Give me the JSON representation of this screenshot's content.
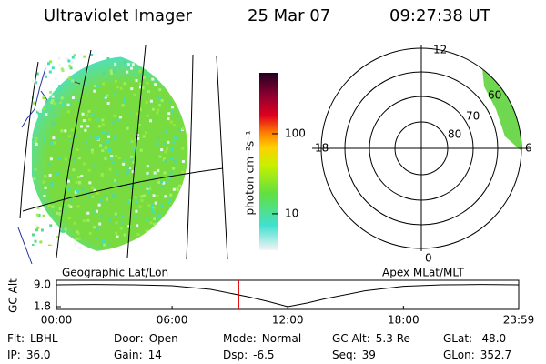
{
  "header": {
    "instrument": "Ultraviolet Imager",
    "date": "25 Mar 07",
    "time": "09:27:38 UT"
  },
  "colorbar": {
    "label": "photon cm⁻²s⁻¹",
    "log_scale": true,
    "lim": [
      3.5,
      577
    ],
    "ticks": [
      10,
      100
    ]
  },
  "map": {
    "label": "Geographic Lat/Lon"
  },
  "polar": {
    "label": "Apex MLat/MLT",
    "hour_labels": [
      "12",
      "18",
      "0",
      "6"
    ],
    "lat_labels": [
      "60",
      "70",
      "80"
    ]
  },
  "altitude_plot": {
    "type": "line",
    "ylabel": "GC Alt",
    "x": [
      0,
      2,
      4,
      6,
      8,
      10,
      11,
      12,
      13,
      14,
      16,
      18,
      20,
      22,
      23.98
    ],
    "values": [
      9.0,
      9.1,
      9.0,
      8.7,
      7.5,
      5.0,
      3.5,
      1.8,
      3.0,
      4.5,
      7.0,
      8.5,
      9.0,
      9.1,
      9.0
    ],
    "xlim": [
      0,
      23.98
    ],
    "ylim": [
      0.9,
      10.5
    ],
    "xticks": [
      {
        "value": 0,
        "label": "00:00"
      },
      {
        "value": 6,
        "label": "06:00"
      },
      {
        "value": 12,
        "label": "12:00"
      },
      {
        "value": 18,
        "label": "18:00"
      },
      {
        "value": 23.98,
        "label": "23:59"
      }
    ],
    "yticks": [
      {
        "value": 9,
        "label": "9.0"
      },
      {
        "value": 1.8,
        "label": "1.8"
      }
    ]
  },
  "footer": [
    [
      {
        "label": "Flt:",
        "value": "LBHL"
      },
      {
        "label": "Door:",
        "value": "Open"
      },
      {
        "label": "Mode:",
        "value": "Normal"
      },
      {
        "label": "GC Alt:",
        "value": "5.3 Re"
      },
      {
        "label": "GLat:",
        "value": "-48.0"
      }
    ],
    [
      {
        "label": "IP:",
        "value": "36.0"
      },
      {
        "label": "Gain:",
        "value": "14"
      },
      {
        "label": "Dsp:",
        "value": "-6.5"
      },
      {
        "label": "Seq:",
        "value": "39"
      },
      {
        "label": "GLon:",
        "value": "352.7"
      }
    ]
  ]
}
